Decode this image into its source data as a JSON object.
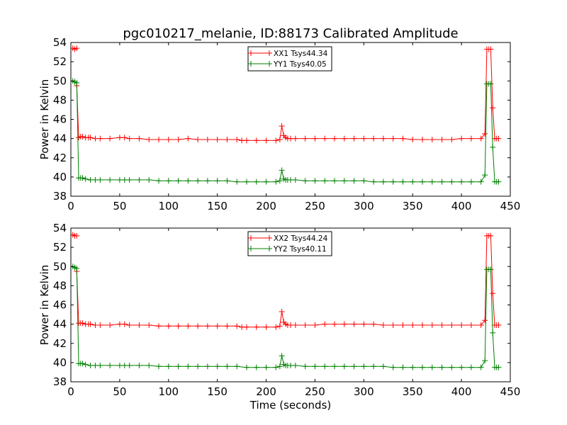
{
  "chart_data": [
    {
      "type": "line",
      "title": "pgc010217_melanie, ID:88173 Calibrated Amplitude",
      "xlabel": "",
      "ylabel": "Power in Kelvin",
      "xlim": [
        0,
        450
      ],
      "ylim": [
        38,
        54
      ],
      "xticks": [
        0,
        50,
        100,
        150,
        200,
        250,
        300,
        350,
        400,
        450
      ],
      "yticks": [
        38,
        40,
        42,
        44,
        46,
        48,
        50,
        52,
        54
      ],
      "grid": false,
      "legend_position": "top-center",
      "series": [
        {
          "name": "XX1 Tsys44.34",
          "color": "#ff0000",
          "marker": "plus",
          "segments": [
            {
              "x": [
                2,
                4,
                6
              ],
              "y": [
                53.4,
                53.3,
                53.4
              ]
            },
            {
              "x": [
                6,
                8,
                10,
                12,
                15,
                18,
                20,
                25,
                30,
                40,
                50,
                55,
                60,
                70,
                80,
                90,
                100,
                110,
                120,
                130,
                140,
                150,
                160,
                170,
                175,
                180,
                190,
                200,
                210,
                214,
                216,
                218,
                220,
                222,
                225,
                230,
                240,
                250,
                260,
                270,
                280,
                290,
                300,
                310,
                320,
                330,
                340,
                350,
                360,
                370,
                380,
                390,
                400,
                410,
                420,
                424,
                426,
                428,
                430,
                432,
                434,
                436,
                438
              ],
              "y": [
                49.5,
                44.1,
                44.2,
                44.2,
                44.1,
                44.1,
                44.1,
                44.0,
                44.0,
                44.0,
                44.1,
                44.1,
                44.0,
                44.0,
                43.9,
                43.9,
                43.9,
                43.9,
                44.0,
                43.9,
                43.9,
                43.9,
                43.9,
                43.9,
                43.8,
                43.8,
                43.8,
                43.8,
                43.8,
                43.9,
                45.3,
                44.3,
                44.1,
                44.0,
                44.0,
                44.0,
                44.0,
                44.0,
                44.0,
                44.0,
                44.0,
                44.0,
                44.0,
                44.0,
                44.0,
                44.0,
                44.0,
                43.9,
                43.9,
                43.9,
                43.9,
                43.9,
                44.0,
                44.0,
                44.0,
                44.5,
                53.3,
                53.3,
                53.3,
                47.2,
                44.0,
                44.0,
                44.0
              ]
            }
          ]
        },
        {
          "name": "YY1 Tsys40.05",
          "color": "#008000",
          "marker": "plus",
          "x": [
            2,
            4,
            6,
            8,
            10,
            12,
            15,
            20,
            25,
            30,
            40,
            50,
            55,
            60,
            70,
            80,
            90,
            100,
            110,
            120,
            130,
            140,
            150,
            160,
            170,
            180,
            190,
            200,
            210,
            214,
            216,
            218,
            220,
            222,
            225,
            230,
            240,
            250,
            260,
            270,
            280,
            290,
            300,
            310,
            320,
            330,
            340,
            350,
            360,
            370,
            380,
            390,
            400,
            410,
            420,
            424,
            426,
            428,
            430,
            432,
            434,
            436,
            438
          ],
          "y": [
            50.0,
            49.9,
            49.8,
            39.9,
            39.9,
            39.9,
            39.8,
            39.7,
            39.7,
            39.7,
            39.7,
            39.7,
            39.7,
            39.7,
            39.7,
            39.7,
            39.6,
            39.6,
            39.6,
            39.6,
            39.6,
            39.6,
            39.6,
            39.6,
            39.5,
            39.5,
            39.5,
            39.5,
            39.5,
            39.6,
            40.7,
            39.8,
            39.7,
            39.7,
            39.7,
            39.7,
            39.6,
            39.6,
            39.6,
            39.6,
            39.6,
            39.6,
            39.6,
            39.5,
            39.5,
            39.5,
            39.5,
            39.5,
            39.5,
            39.5,
            39.5,
            39.5,
            39.5,
            39.5,
            39.5,
            40.2,
            49.7,
            49.7,
            49.7,
            43.1,
            39.5,
            39.5,
            39.5
          ]
        }
      ]
    },
    {
      "type": "line",
      "title": "",
      "xlabel": "Time (seconds)",
      "ylabel": "Power in Kelvin",
      "xlim": [
        0,
        450
      ],
      "ylim": [
        38,
        54
      ],
      "xticks": [
        0,
        50,
        100,
        150,
        200,
        250,
        300,
        350,
        400,
        450
      ],
      "yticks": [
        38,
        40,
        42,
        44,
        46,
        48,
        50,
        52,
        54
      ],
      "grid": false,
      "legend_position": "top-center",
      "series": [
        {
          "name": "XX2 Tsys44.24",
          "color": "#ff0000",
          "marker": "plus",
          "segments": [
            {
              "x": [
                2,
                4,
                6
              ],
              "y": [
                53.3,
                53.2,
                53.2
              ]
            },
            {
              "x": [
                6,
                8,
                10,
                12,
                15,
                18,
                20,
                25,
                30,
                40,
                50,
                55,
                60,
                70,
                80,
                90,
                100,
                110,
                120,
                130,
                140,
                150,
                160,
                170,
                175,
                180,
                190,
                200,
                210,
                214,
                216,
                218,
                220,
                222,
                225,
                230,
                240,
                250,
                260,
                270,
                280,
                290,
                300,
                310,
                320,
                330,
                340,
                350,
                360,
                370,
                380,
                390,
                400,
                410,
                420,
                424,
                426,
                428,
                430,
                432,
                434,
                436,
                438
              ],
              "y": [
                49.5,
                44.1,
                44.1,
                44.1,
                44.0,
                44.0,
                44.0,
                43.9,
                43.9,
                43.9,
                44.0,
                44.0,
                43.9,
                43.9,
                43.9,
                43.8,
                43.8,
                43.8,
                43.8,
                43.8,
                43.8,
                43.8,
                43.8,
                43.8,
                43.7,
                43.7,
                43.7,
                43.7,
                43.7,
                43.8,
                45.3,
                44.2,
                44.0,
                43.9,
                43.9,
                43.9,
                43.9,
                43.9,
                44.0,
                44.0,
                44.0,
                44.0,
                44.0,
                44.0,
                43.9,
                43.9,
                43.9,
                43.9,
                43.9,
                43.9,
                43.9,
                43.9,
                43.9,
                43.9,
                43.9,
                44.4,
                53.2,
                53.2,
                53.2,
                47.2,
                43.9,
                43.9,
                43.9
              ]
            }
          ]
        },
        {
          "name": "YY2 Tsys40.11",
          "color": "#008000",
          "marker": "plus",
          "x": [
            2,
            4,
            6,
            8,
            10,
            12,
            15,
            20,
            25,
            30,
            40,
            50,
            55,
            60,
            70,
            80,
            90,
            100,
            110,
            120,
            130,
            140,
            150,
            160,
            170,
            180,
            190,
            200,
            210,
            214,
            216,
            218,
            220,
            222,
            225,
            230,
            240,
            250,
            260,
            270,
            280,
            290,
            300,
            310,
            320,
            330,
            340,
            350,
            360,
            370,
            380,
            390,
            400,
            410,
            420,
            424,
            426,
            428,
            430,
            432,
            434,
            436,
            438
          ],
          "y": [
            50.0,
            49.9,
            49.8,
            39.9,
            39.9,
            39.9,
            39.8,
            39.7,
            39.7,
            39.7,
            39.7,
            39.7,
            39.7,
            39.7,
            39.7,
            39.7,
            39.6,
            39.6,
            39.6,
            39.6,
            39.6,
            39.6,
            39.6,
            39.6,
            39.6,
            39.5,
            39.5,
            39.5,
            39.5,
            39.6,
            40.7,
            39.8,
            39.7,
            39.7,
            39.7,
            39.7,
            39.6,
            39.6,
            39.6,
            39.6,
            39.6,
            39.6,
            39.6,
            39.6,
            39.6,
            39.5,
            39.5,
            39.5,
            39.5,
            39.5,
            39.5,
            39.5,
            39.5,
            39.5,
            39.5,
            40.2,
            49.7,
            49.7,
            49.7,
            43.1,
            39.5,
            39.5,
            39.5
          ]
        }
      ]
    }
  ]
}
